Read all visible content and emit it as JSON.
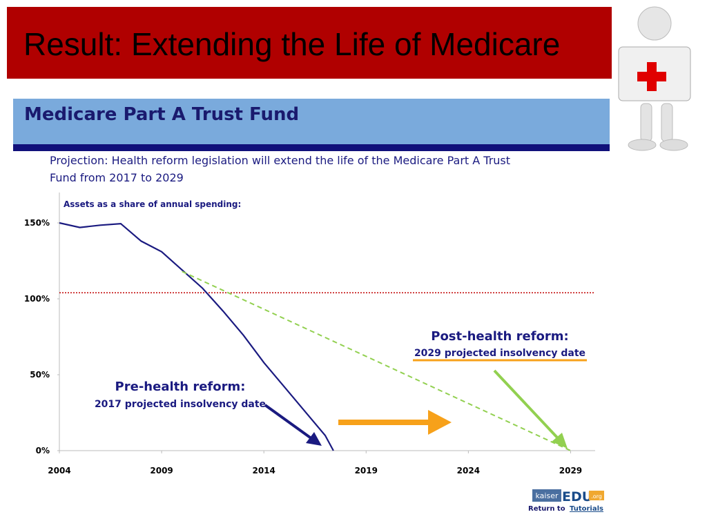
{
  "slide": {
    "title": "Result: Extending the Life of Medicare"
  },
  "chart_data": {
    "type": "line",
    "title": "Medicare Part A Trust Fund",
    "subtitle": [
      "Projection:  Health reform legislation will extend the life of the Medicare Part A Trust",
      "Fund from 2017 to 2029"
    ],
    "y_label": "Assets as a share of annual spending:",
    "xlim": [
      2004,
      2030.2
    ],
    "xticks": [
      2004,
      2009,
      2014,
      2019,
      2024,
      2029
    ],
    "ylim": [
      0,
      170
    ],
    "yticks": [
      {
        "value": 0,
        "label": "0%"
      },
      {
        "value": 50,
        "label": "50%"
      },
      {
        "value": 100,
        "label": "100%"
      },
      {
        "value": 150,
        "label": "150%"
      }
    ],
    "reference_line": {
      "value": 104,
      "color": "#c00000"
    },
    "series": [
      {
        "color": "#1a1a80",
        "dashed": false,
        "x": [
          2004,
          2005,
          2006,
          2007,
          2008,
          2009,
          2010,
          2011,
          2012,
          2013,
          2014,
          2015,
          2016,
          2017,
          2017.4
        ],
        "values": [
          150,
          147,
          148.5,
          149.5,
          138,
          131,
          119,
          107,
          92,
          76,
          58,
          42,
          26,
          10,
          0
        ]
      },
      {
        "color": "#92d050",
        "dashed": true,
        "x": [
          2010,
          2029
        ],
        "values": [
          118,
          0
        ]
      }
    ],
    "annotations": [
      {
        "text": "Pre-health reform:",
        "color": "#1a1a80"
      },
      {
        "text": "2017 projected insolvency date",
        "color": "#1a1a80"
      },
      {
        "text": "Post-health reform:",
        "color": "#1a1a80"
      },
      {
        "text": "2029 projected insolvency date",
        "color": "#1a1a80"
      }
    ]
  },
  "footer": {
    "logo": [
      "kaiser",
      "EDU",
      ".org"
    ],
    "return_text": "Return to",
    "link": "Tutorials"
  }
}
